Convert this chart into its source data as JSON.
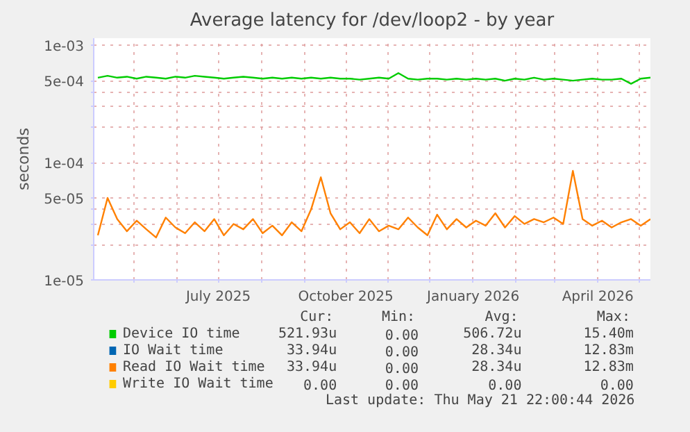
{
  "chart_data": {
    "type": "line",
    "title": "Average latency for /dev/loop2 - by year",
    "ylabel": "seconds",
    "log": true,
    "grid": true,
    "legend": "bottom",
    "line_style": "solid",
    "xlim": [
      "2025-04-02",
      "2026-05-09"
    ],
    "xticks": [
      {
        "value": "2025-05-01",
        "label": null
      },
      {
        "value": "2025-06-01",
        "label": null
      },
      {
        "value": "2025-07-01",
        "label": "July 2025"
      },
      {
        "value": "2025-08-01",
        "label": null
      },
      {
        "value": "2025-09-01",
        "label": null
      },
      {
        "value": "2025-10-01",
        "label": "October 2025"
      },
      {
        "value": "2025-11-01",
        "label": null
      },
      {
        "value": "2025-12-01",
        "label": null
      },
      {
        "value": "2026-01-01",
        "label": "January 2026"
      },
      {
        "value": "2026-02-01",
        "label": null
      },
      {
        "value": "2026-03-01",
        "label": null
      },
      {
        "value": "2026-04-01",
        "label": "April 2026"
      },
      {
        "value": "2026-05-01",
        "label": null
      }
    ],
    "ylim": [
      1e-05,
      0.00115
    ],
    "yticks": [
      {
        "value": 1e-05,
        "label": "1e-05"
      },
      {
        "value": 2e-05,
        "label": null
      },
      {
        "value": 3e-05,
        "label": null
      },
      {
        "value": 4e-05,
        "label": null
      },
      {
        "value": 5e-05,
        "label": "5e-05"
      },
      {
        "value": 0.0001,
        "label": "1e-04"
      },
      {
        "value": 0.0002,
        "label": null
      },
      {
        "value": 0.0003,
        "label": null
      },
      {
        "value": 0.0004,
        "label": null
      },
      {
        "value": 0.0005,
        "label": "5e-04"
      },
      {
        "value": 0.001,
        "label": "1e-03"
      }
    ],
    "x": [
      "2025-04-05",
      "2025-04-12",
      "2025-04-19",
      "2025-04-26",
      "2025-05-03",
      "2025-05-10",
      "2025-05-17",
      "2025-05-24",
      "2025-05-31",
      "2025-06-07",
      "2025-06-14",
      "2025-06-21",
      "2025-06-28",
      "2025-07-05",
      "2025-07-12",
      "2025-07-19",
      "2025-07-26",
      "2025-08-02",
      "2025-08-09",
      "2025-08-16",
      "2025-08-23",
      "2025-08-30",
      "2025-09-06",
      "2025-09-13",
      "2025-09-20",
      "2025-09-27",
      "2025-10-04",
      "2025-10-11",
      "2025-10-18",
      "2025-10-25",
      "2025-11-01",
      "2025-11-08",
      "2025-11-15",
      "2025-11-22",
      "2025-11-29",
      "2025-12-06",
      "2025-12-13",
      "2025-12-20",
      "2025-12-27",
      "2026-01-03",
      "2026-01-10",
      "2026-01-17",
      "2026-01-24",
      "2026-01-31",
      "2026-02-07",
      "2026-02-14",
      "2026-02-21",
      "2026-02-28",
      "2026-03-07",
      "2026-03-14",
      "2026-03-21",
      "2026-03-28",
      "2026-04-04",
      "2026-04-11",
      "2026-04-18",
      "2026-04-25",
      "2026-05-02",
      "2026-05-09"
    ],
    "series": [
      {
        "name": "Device IO time",
        "color": "#00cc00",
        "values": [
          0.00053,
          0.00055,
          0.00053,
          0.00054,
          0.00052,
          0.00054,
          0.00053,
          0.00052,
          0.00054,
          0.00053,
          0.00055,
          0.00054,
          0.00053,
          0.00052,
          0.00053,
          0.00054,
          0.00053,
          0.00052,
          0.00053,
          0.00052,
          0.00053,
          0.00052,
          0.00053,
          0.00052,
          0.00053,
          0.00052,
          0.00052,
          0.00051,
          0.00052,
          0.00053,
          0.00052,
          0.00058,
          0.00052,
          0.00051,
          0.00052,
          0.00052,
          0.00051,
          0.00052,
          0.00051,
          0.00052,
          0.00051,
          0.00052,
          0.0005,
          0.00052,
          0.00051,
          0.00053,
          0.00051,
          0.00052,
          0.00051,
          0.0005,
          0.00051,
          0.00052,
          0.00051,
          0.00051,
          0.00052,
          0.00047,
          0.00052,
          0.00053
        ]
      },
      {
        "name": "IO Wait time",
        "color": "#0066b3",
        "values": [
          null,
          null,
          null,
          null,
          null,
          null,
          null,
          null,
          null,
          null,
          null,
          null,
          null,
          null,
          null,
          null,
          null,
          null,
          null,
          null,
          null,
          null,
          null,
          null,
          null,
          null,
          null,
          null,
          null,
          null,
          null,
          null,
          null,
          null,
          null,
          null,
          null,
          null,
          null,
          null,
          null,
          null,
          null,
          null,
          null,
          null,
          null,
          null,
          null,
          null,
          null,
          null,
          null,
          null,
          null,
          null,
          null,
          null
        ]
      },
      {
        "name": "Read IO Wait time",
        "color": "#ff8000",
        "values": [
          2.4e-05,
          5e-05,
          3.3e-05,
          2.6e-05,
          3.2e-05,
          2.7e-05,
          2.3e-05,
          3.4e-05,
          2.8e-05,
          2.5e-05,
          3.1e-05,
          2.6e-05,
          3.3e-05,
          2.4e-05,
          3e-05,
          2.7e-05,
          3.3e-05,
          2.5e-05,
          2.9e-05,
          2.4e-05,
          3.1e-05,
          2.6e-05,
          4e-05,
          7.5e-05,
          3.7e-05,
          2.7e-05,
          3.1e-05,
          2.5e-05,
          3.3e-05,
          2.6e-05,
          2.9e-05,
          2.7e-05,
          3.4e-05,
          2.8e-05,
          2.4e-05,
          3.6e-05,
          2.7e-05,
          3.3e-05,
          2.8e-05,
          3.2e-05,
          2.9e-05,
          3.7e-05,
          2.8e-05,
          3.5e-05,
          3e-05,
          3.3e-05,
          3.1e-05,
          3.4e-05,
          3e-05,
          8.5e-05,
          3.3e-05,
          2.9e-05,
          3.2e-05,
          2.8e-05,
          3.1e-05,
          3.3e-05,
          2.9e-05,
          3.3e-05
        ]
      },
      {
        "name": "Write IO Wait time",
        "color": "#ffcc00",
        "values": [
          null,
          null,
          null,
          null,
          null,
          null,
          null,
          null,
          null,
          null,
          null,
          null,
          null,
          null,
          null,
          null,
          null,
          null,
          null,
          null,
          null,
          null,
          null,
          null,
          null,
          null,
          null,
          null,
          null,
          null,
          null,
          null,
          null,
          null,
          null,
          null,
          null,
          null,
          null,
          null,
          null,
          null,
          null,
          null,
          null,
          null,
          null,
          null,
          null,
          null,
          null,
          null,
          null,
          null,
          null,
          null,
          null,
          null
        ]
      }
    ],
    "annotations": [
      "Cur:",
      "Min:",
      "Avg:",
      "Max:",
      "521.93u",
      "0.00",
      "506.72u",
      "15.40m",
      "33.94u",
      "0.00",
      "28.34u",
      "12.83m",
      "33.94u",
      "0.00",
      "28.34u",
      "12.83m",
      "0.00",
      "0.00",
      "0.00",
      "0.00",
      "Last update: Thu May 21 22:00:44 2026"
    ]
  }
}
